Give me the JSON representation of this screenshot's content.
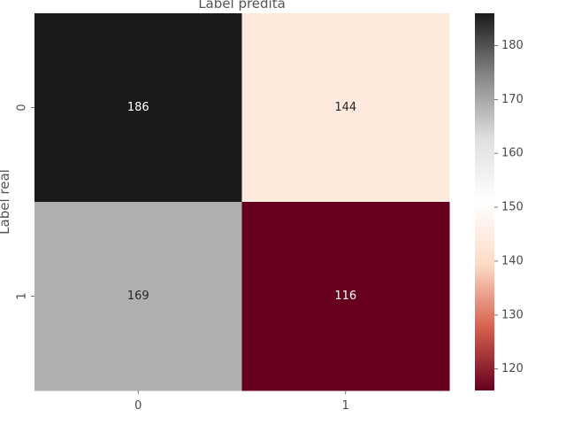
{
  "chart_data": {
    "type": "heatmap",
    "xlabel": "Label predita",
    "ylabel": "Label real",
    "x_categories": [
      "0",
      "1"
    ],
    "y_categories": [
      "0",
      "1"
    ],
    "values": [
      [
        186,
        144
      ],
      [
        169,
        116
      ]
    ],
    "colorbar": {
      "min": 116,
      "max": 186,
      "ticks": [
        120,
        130,
        140,
        150,
        160,
        170,
        180
      ],
      "colormap": "RdGy",
      "colors": [
        "#67001f",
        "#d6604d",
        "#fddbc7",
        "#ffffff",
        "#e0e0e0",
        "#878787",
        "#1a1a1a"
      ]
    },
    "annotation_color_dark_bg": "#ffffff",
    "annotation_color_light_bg": "#262626",
    "xlabel_position": "top"
  }
}
